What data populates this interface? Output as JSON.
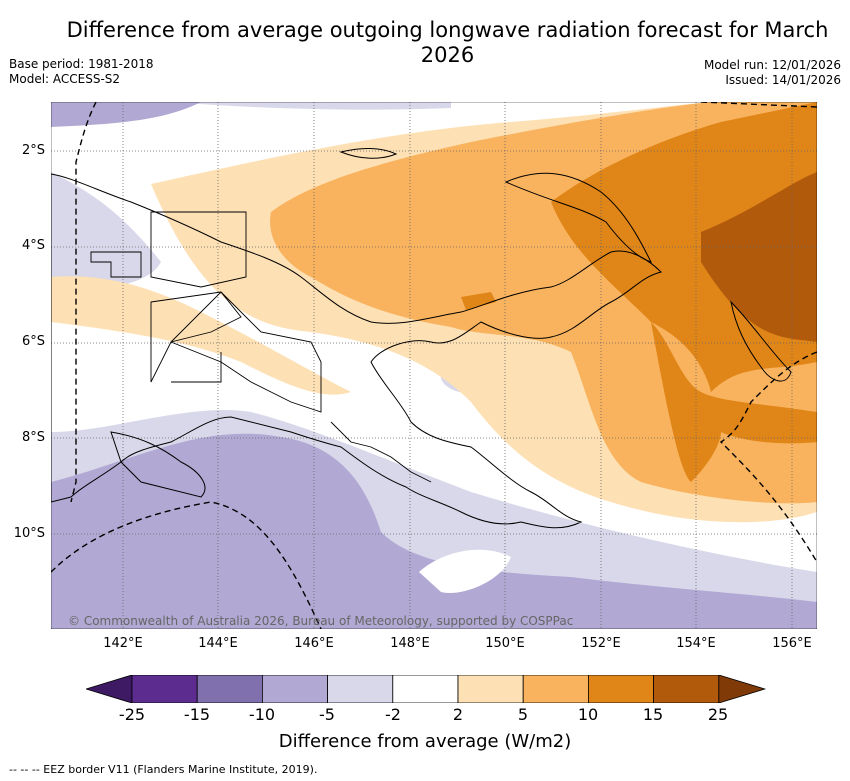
{
  "title": "Difference from average outgoing longwave radiation forecast for March 2026",
  "base_period": "Base period: 1981-2018",
  "model": "Model: ACCESS-S2",
  "model_run": "Model run: 12/01/2026",
  "issued": "Issued: 14/01/2026",
  "copyright": "© Commonwealth of Australia 2026, Bureau of Meteorology, supported by COSPPac",
  "lat_labels": [
    "2°S",
    "4°S",
    "6°S",
    "8°S",
    "10°S"
  ],
  "lon_labels": [
    "142°E",
    "144°E",
    "146°E",
    "148°E",
    "150°E",
    "152°E",
    "154°E",
    "156°E"
  ],
  "colorbar": {
    "ticks": [
      "-25",
      "-15",
      "-10",
      "-5",
      "-2",
      "2",
      "5",
      "10",
      "15",
      "25"
    ],
    "colors": [
      "#3f1a64",
      "#5c2d8f",
      "#8070ae",
      "#b1a9d3",
      "#d8d8ea",
      "#ffffff",
      "#fde0b4",
      "#f9b35e",
      "#e08517",
      "#b25a0c",
      "#7f3a08"
    ],
    "label": "Difference from average (W/m2)"
  },
  "footnote": "--  --  -- EEZ border V11 (Flanders Marine Institute, 2019)."
}
